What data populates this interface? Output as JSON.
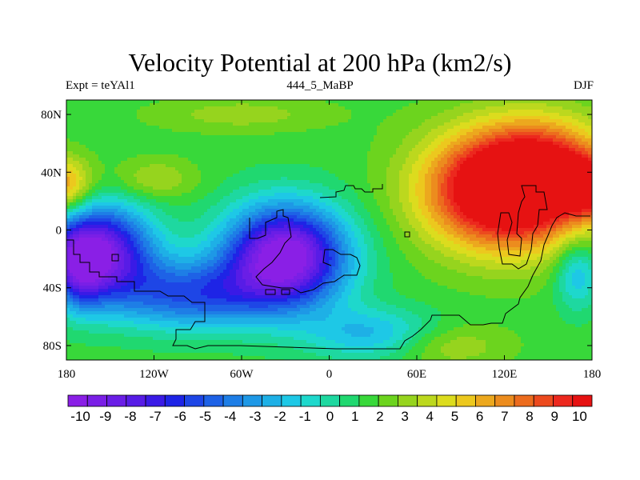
{
  "chart_data": {
    "type": "heatmap",
    "title": "Velocity Potential at 200 hPa (km2/s)",
    "left_label": "Expt = teYAl1",
    "center_label": "444_5_MaBP",
    "right_label": "DJF",
    "x_ticks": [
      "180",
      "120W",
      "60W",
      "0",
      "60E",
      "120E",
      "180"
    ],
    "x_tick_values": [
      -180,
      -120,
      -60,
      0,
      60,
      120,
      180
    ],
    "y_ticks": [
      "80N",
      "40N",
      "0",
      "40S",
      "80S"
    ],
    "y_tick_values": [
      80,
      40,
      0,
      -40,
      -80
    ],
    "xlim": [
      -180,
      180
    ],
    "ylim": [
      -90,
      90
    ],
    "colorbar_labels": [
      "-10",
      "-9",
      "-8",
      "-7",
      "-6",
      "-5",
      "-4",
      "-3",
      "-2",
      "-1",
      "0",
      "1",
      "2",
      "3",
      "4",
      "5",
      "6",
      "7",
      "8",
      "9",
      "10"
    ],
    "colorbar_colors": [
      "#8a1fe6",
      "#7a1fe6",
      "#6a1ee6",
      "#571ce6",
      "#3a1ae6",
      "#1e24e6",
      "#1e46e6",
      "#1e62e6",
      "#1e7ee6",
      "#1e98e6",
      "#1eb0e6",
      "#1ec8e6",
      "#1ed8cc",
      "#1ed8a0",
      "#20d870",
      "#38d83a",
      "#6cd41e",
      "#96d41e",
      "#bcd81e",
      "#dcdc1e",
      "#ecc81e",
      "#eca81e",
      "#ec8c1e",
      "#ec6c1e",
      "#ec4a1e",
      "#ec281e",
      "#e61212"
    ],
    "centers": [
      {
        "lon": 123,
        "lat": 28,
        "amp": 12.5,
        "sx": 55,
        "sy": 40
      },
      {
        "lon": 150,
        "lat": 50,
        "amp": 3.0,
        "sx": 40,
        "sy": 30
      },
      {
        "lon": -183,
        "lat": 30,
        "amp": 5.5,
        "sx": 20,
        "sy": 20
      },
      {
        "lon": 177,
        "lat": 30,
        "amp": 5.5,
        "sx": 20,
        "sy": 20
      },
      {
        "lon": -120,
        "lat": 35,
        "amp": 2.0,
        "sx": 28,
        "sy": 14
      },
      {
        "lon": -30,
        "lat": -18,
        "amp": -12.0,
        "sx": 42,
        "sy": 35
      },
      {
        "lon": -160,
        "lat": -15,
        "amp": -11.0,
        "sx": 38,
        "sy": 32
      },
      {
        "lon": -95,
        "lat": -45,
        "amp": -6.0,
        "sx": 55,
        "sy": 24
      },
      {
        "lon": 30,
        "lat": -72,
        "amp": -3.5,
        "sx": 45,
        "sy": 18
      },
      {
        "lon": 170,
        "lat": -30,
        "amp": -3.5,
        "sx": 15,
        "sy": 25
      },
      {
        "lon": -170,
        "lat": -30,
        "amp": -3.5,
        "sx": 15,
        "sy": 25
      },
      {
        "lon": 80,
        "lat": -80,
        "amp": 2.0,
        "sx": 40,
        "sy": 15
      },
      {
        "lon": -60,
        "lat": 80,
        "amp": 1.5,
        "sx": 60,
        "sy": 12
      }
    ],
    "base_value": 1.5
  }
}
